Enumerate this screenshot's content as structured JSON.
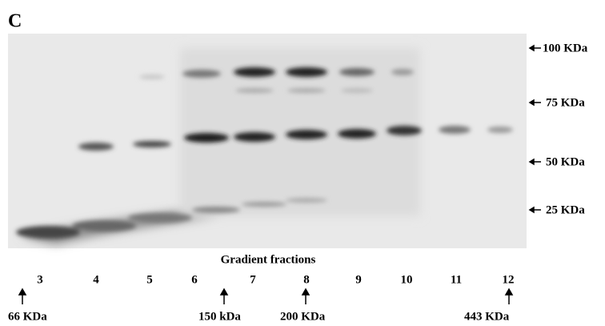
{
  "panel_label": "C",
  "markers": [
    "100 KDa",
    "75 KDa",
    "50 KDa",
    "25 KDa"
  ],
  "x_axis_title": "Gradient fractions",
  "fractions": [
    "3",
    "4",
    "5",
    "6",
    "7",
    "8",
    "9",
    "10",
    "11",
    "12"
  ],
  "standards": [
    "66 KDa",
    "150 kDa",
    "200 KDa",
    "443 KDa"
  ]
}
